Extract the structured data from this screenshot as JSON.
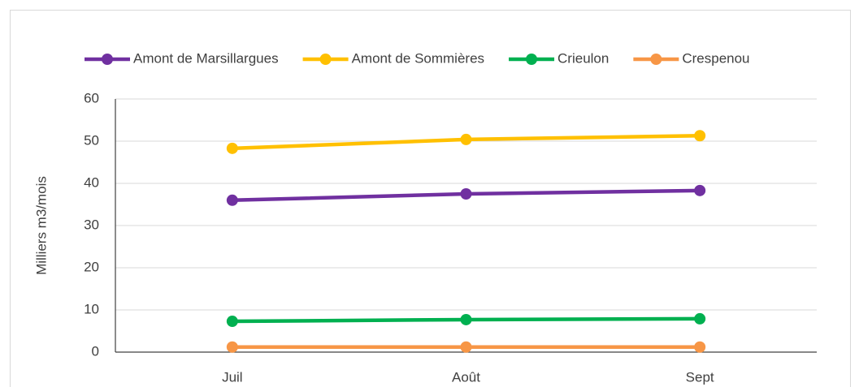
{
  "chart_data": {
    "type": "line",
    "categories": [
      "Juil",
      "Août",
      "Sept"
    ],
    "series": [
      {
        "name": "Amont de Marsillargues",
        "color": "#7030a0",
        "values": [
          36.0,
          37.5,
          38.3
        ]
      },
      {
        "name": "Amont de Sommières",
        "color": "#ffc000",
        "values": [
          48.3,
          50.4,
          51.3
        ]
      },
      {
        "name": "Crieulon",
        "color": "#00b050",
        "values": [
          7.3,
          7.7,
          7.9
        ]
      },
      {
        "name": "Crespenou",
        "color": "#f79646",
        "values": [
          1.2,
          1.2,
          1.2
        ]
      }
    ],
    "y_label": "Milliers m3/mois",
    "ylim": [
      0,
      60
    ],
    "yticks": [
      0,
      10,
      20,
      30,
      40,
      50,
      60
    ],
    "grid": true,
    "legend": "top"
  }
}
